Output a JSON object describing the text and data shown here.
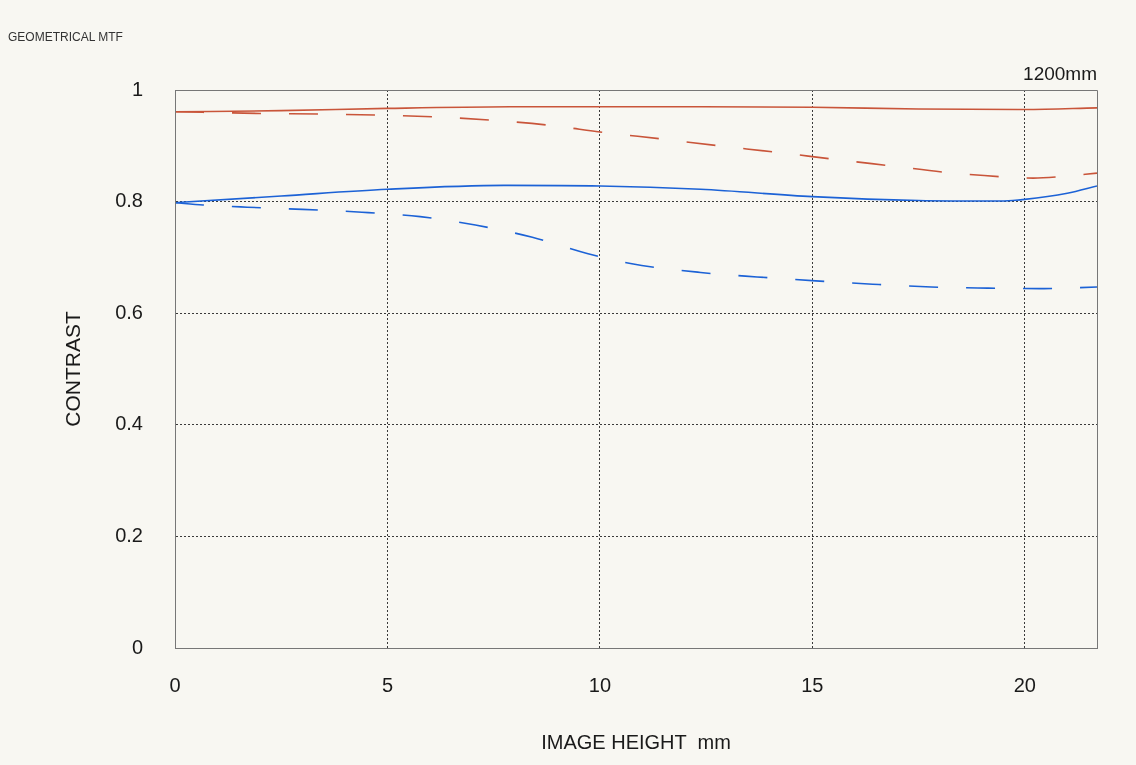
{
  "chart_data": {
    "type": "line",
    "title": "GEOMETRICAL MTF",
    "xlabel": "IMAGE HEIGHT  mm",
    "ylabel": "CONTRAST",
    "annotations": [
      "1200mm"
    ],
    "xlim": [
      0,
      21.7
    ],
    "xticks": [
      0,
      5,
      10,
      15,
      20
    ],
    "ylim": [
      0,
      1
    ],
    "yticks": [
      0,
      0.2,
      0.4,
      0.6,
      0.8,
      1
    ],
    "grid": true,
    "marker": "none",
    "series": [
      {
        "color": "#c9553a",
        "line_style": "solid",
        "x": [
          0,
          2.5,
          5,
          8.3,
          10,
          12.4,
          15,
          17.5,
          20,
          21.7
        ],
        "values": [
          0.961,
          0.963,
          0.967,
          0.97,
          0.97,
          0.97,
          0.969,
          0.966,
          0.965,
          0.968
        ]
      },
      {
        "color": "#c9553a",
        "line_style": "dashed",
        "x": [
          0,
          0.66,
          2.0,
          3.37,
          4.76,
          6.08,
          7.42,
          8.79,
          10.08,
          11.48,
          12.8,
          14.2,
          15.5,
          16.85,
          18.2,
          19.55,
          20.2,
          20.9,
          21.7
        ],
        "values": [
          0.961,
          0.96,
          0.958,
          0.957,
          0.955,
          0.952,
          0.946,
          0.937,
          0.924,
          0.912,
          0.9,
          0.888,
          0.876,
          0.864,
          0.852,
          0.844,
          0.842,
          0.845,
          0.851
        ]
      },
      {
        "color": "#1c62d6",
        "line_style": "solid",
        "x": [
          0,
          2.5,
          5,
          7.74,
          10,
          12.37,
          15,
          17.5,
          19.43,
          20,
          21,
          21.7
        ],
        "values": [
          0.798,
          0.81,
          0.822,
          0.829,
          0.828,
          0.822,
          0.809,
          0.802,
          0.801,
          0.804,
          0.815,
          0.828
        ]
      },
      {
        "color": "#1c62d6",
        "line_style": "dashed",
        "x": [
          0,
          0.66,
          1.7,
          3.0,
          4.4,
          5.77,
          7.07,
          8.41,
          9.7,
          10.72,
          12.37,
          13.7,
          15.08,
          16.42,
          17.8,
          19.13,
          20.45,
          21.7
        ],
        "values": [
          0.798,
          0.794,
          0.79,
          0.786,
          0.781,
          0.773,
          0.758,
          0.736,
          0.707,
          0.689,
          0.673,
          0.665,
          0.658,
          0.652,
          0.647,
          0.645,
          0.644,
          0.647
        ]
      }
    ]
  }
}
